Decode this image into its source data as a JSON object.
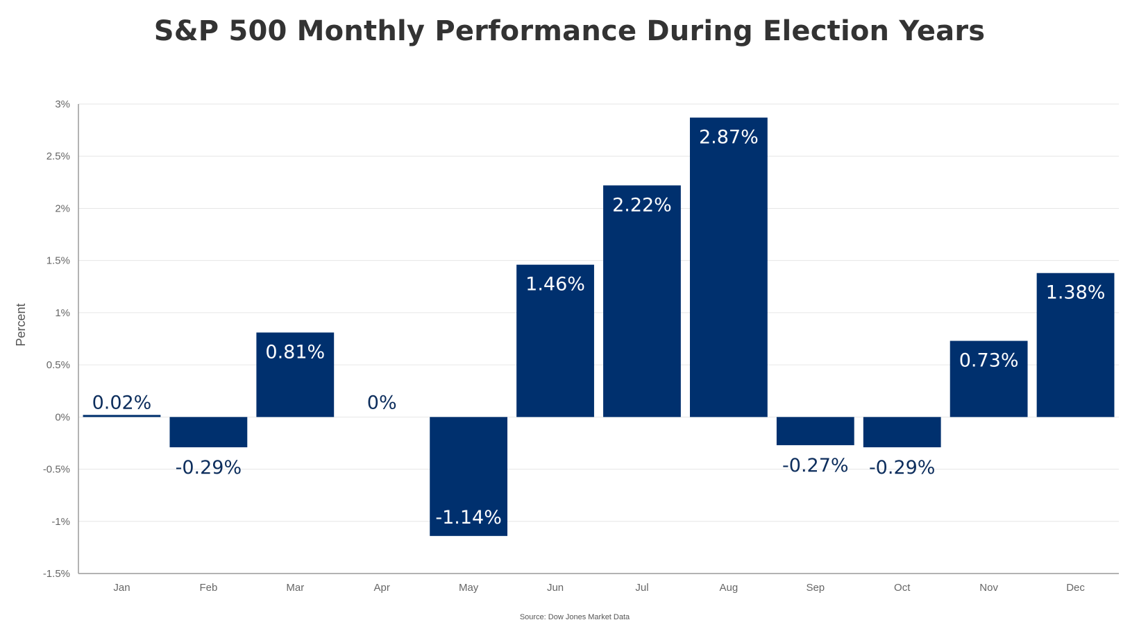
{
  "chart_data": {
    "type": "bar",
    "title": "S&P 500 Monthly Performance During Election Years",
    "xlabel": "",
    "ylabel": "Percent",
    "categories": [
      "Jan",
      "Feb",
      "Mar",
      "Apr",
      "May",
      "Jun",
      "Jul",
      "Aug",
      "Sep",
      "Oct",
      "Nov",
      "Dec"
    ],
    "values": [
      0.02,
      -0.29,
      0.81,
      0,
      -1.14,
      1.46,
      2.22,
      2.87,
      -0.27,
      -0.29,
      0.73,
      1.38
    ],
    "value_labels": [
      "0.02%",
      "-0.29%",
      "0.81%",
      "0%",
      "-1.14%",
      "1.46%",
      "2.22%",
      "2.87%",
      "-0.27%",
      "-0.29%",
      "0.73%",
      "1.38%"
    ],
    "ylim": [
      -1.5,
      3
    ],
    "yticks": [
      3,
      2.5,
      2,
      1.5,
      1,
      0.5,
      0,
      -0.5,
      -1,
      -1.5
    ],
    "ytick_labels": [
      "3%",
      "2.5%",
      "2%",
      "1.5%",
      "1%",
      "0.5%",
      "0%",
      "-0.5%",
      "-1%",
      "-1.5%"
    ],
    "grid": true,
    "legend": "none",
    "bar_color": "#00306e",
    "source": "Source: Dow Jones Market Data"
  }
}
